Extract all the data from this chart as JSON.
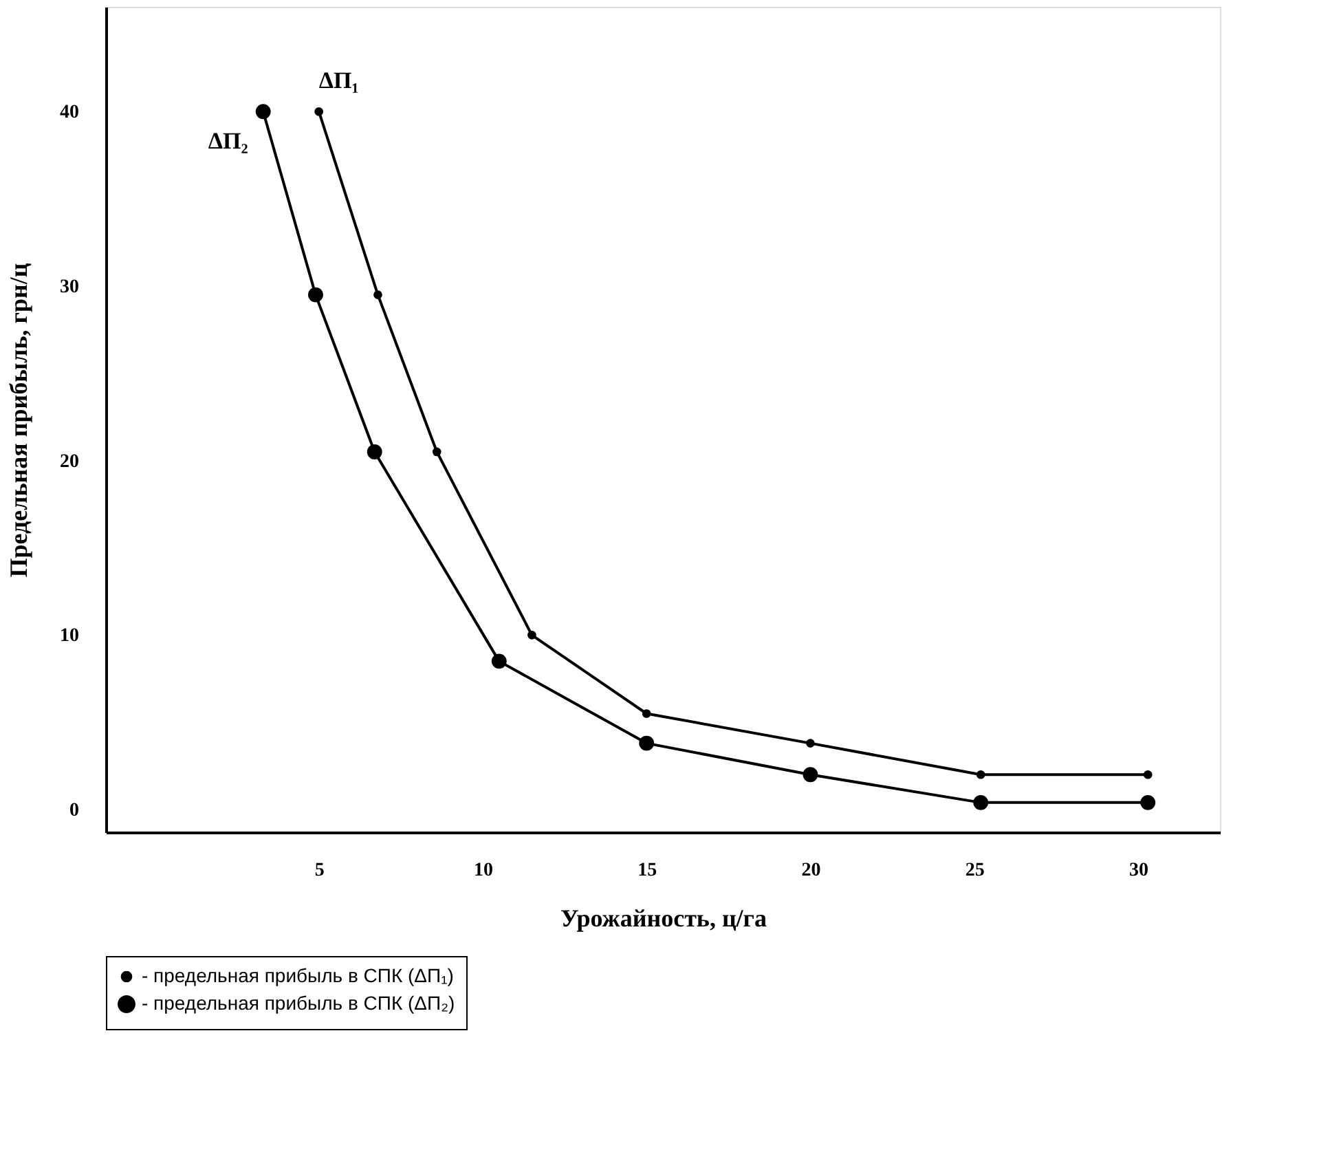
{
  "chart_data": {
    "type": "line",
    "xlabel": "Урожайность, ц/га",
    "ylabel": "Предельная прибыль, грн/ц",
    "xlim": [
      -1.5,
      32.5
    ],
    "ylim": [
      -1.3,
      46
    ],
    "xticks": [
      5,
      10,
      15,
      20,
      25,
      30
    ],
    "yticks": [
      0,
      10,
      20,
      30,
      40
    ],
    "grid": false,
    "legend": "bottom",
    "marker": "circle",
    "line_style": "solid",
    "series": [
      {
        "name": "- предельная прибыль в СПК (ΔП₁)",
        "color": "#000000",
        "x": [
          5,
          6.8,
          8.6,
          11.5,
          15,
          20,
          25.2,
          30.3
        ],
        "values": [
          40,
          29.5,
          20.5,
          10,
          5.5,
          3.8,
          2,
          2
        ]
      },
      {
        "name": "- предельная прибыль в СПК (ΔП₂)",
        "color": "#000000",
        "x": [
          3.3,
          4.9,
          6.7,
          10.5,
          15,
          20,
          25.2,
          30.3
        ],
        "values": [
          40,
          29.5,
          20.5,
          8.5,
          3.8,
          2,
          0.4,
          0.4
        ]
      }
    ],
    "annotations": [
      "ΔП₁",
      "ΔП₂"
    ]
  }
}
